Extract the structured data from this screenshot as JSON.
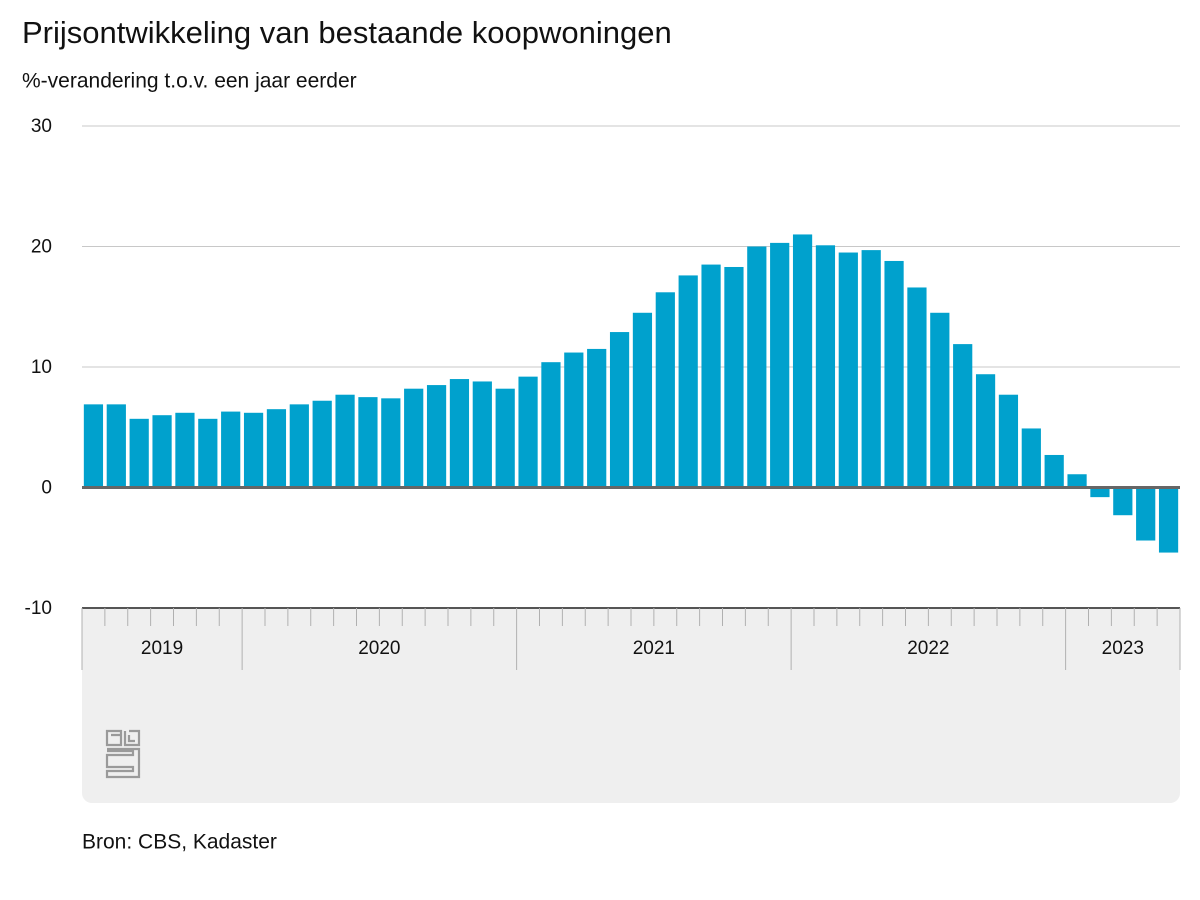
{
  "chart_data": {
    "type": "bar",
    "title": "Prijsontwikkeling van bestaande koopwoningen",
    "subtitle": "%-verandering t.o.v. een jaar eerder",
    "source": "Bron: CBS, Kadaster",
    "categories": [
      "2019",
      "2019",
      "2019",
      "2019",
      "2019",
      "2019",
      "2019",
      "2020",
      "2020",
      "2020",
      "2020",
      "2020",
      "2020",
      "2020",
      "2020",
      "2020",
      "2020",
      "2020",
      "2020",
      "2021",
      "2021",
      "2021",
      "2021",
      "2021",
      "2021",
      "2021",
      "2021",
      "2021",
      "2021",
      "2021",
      "2021",
      "2022",
      "2022",
      "2022",
      "2022",
      "2022",
      "2022",
      "2022",
      "2022",
      "2022",
      "2022",
      "2022",
      "2022",
      "2023",
      "2023",
      "2023",
      "2023",
      "2023"
    ],
    "values": [
      6.9,
      6.9,
      5.7,
      6.0,
      6.2,
      5.7,
      6.3,
      6.2,
      6.5,
      6.9,
      7.2,
      7.7,
      7.5,
      7.4,
      8.2,
      8.5,
      9.0,
      8.8,
      8.2,
      9.2,
      10.4,
      11.2,
      11.5,
      12.9,
      14.5,
      16.2,
      17.6,
      18.5,
      18.3,
      20.0,
      20.3,
      21.0,
      20.1,
      19.5,
      19.7,
      18.8,
      16.6,
      14.5,
      11.9,
      9.4,
      7.7,
      4.9,
      2.7,
      1.1,
      -0.8,
      -2.3,
      -4.4,
      -5.4
    ],
    "color": "#00a1cd",
    "ylim": [
      -10,
      30
    ],
    "yticks": [
      -10,
      0,
      10,
      20,
      30
    ],
    "grid": true
  }
}
